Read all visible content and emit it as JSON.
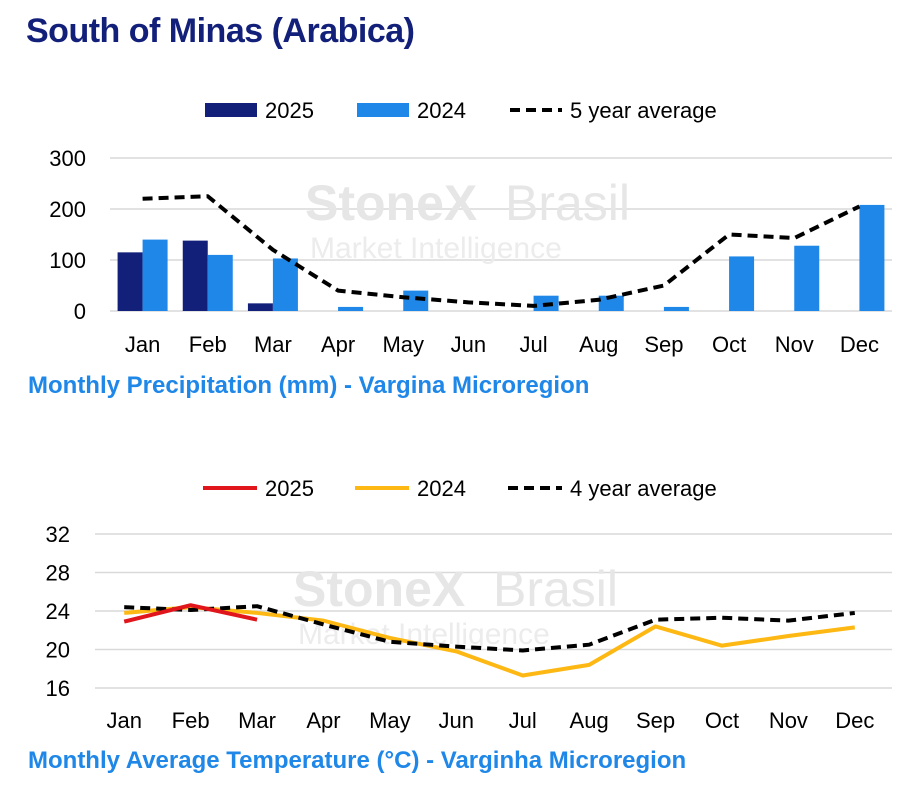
{
  "title": "South of Minas (Arabica)",
  "watermark": {
    "line1": "StoneX",
    "line2": "Brasil",
    "line3": "Market Intelligence"
  },
  "colors": {
    "title": "#13207a",
    "subtitle": "#1e87e8",
    "bar_2025": "#13207a",
    "bar_2024": "#1e87e8",
    "line_2025": "#e0161c",
    "line_2024": "#fdb813",
    "average": "#000000",
    "grid": "#d9d9d9"
  },
  "chart_data": [
    {
      "type": "bar",
      "title": "Monthly Precipitation (mm) - Vargina Microregion",
      "categories": [
        "Jan",
        "Feb",
        "Mar",
        "Apr",
        "May",
        "Jun",
        "Jul",
        "Aug",
        "Sep",
        "Oct",
        "Nov",
        "Dec"
      ],
      "ylim": [
        0,
        300
      ],
      "yticks": [
        0,
        100,
        200,
        300
      ],
      "legend_position": "top",
      "grid": true,
      "series": [
        {
          "name": "2025",
          "kind": "bar",
          "values": [
            115,
            138,
            15,
            null,
            null,
            null,
            null,
            null,
            null,
            null,
            null,
            null
          ]
        },
        {
          "name": "2024",
          "kind": "bar",
          "values": [
            140,
            110,
            103,
            8,
            40,
            0,
            30,
            30,
            8,
            107,
            128,
            208
          ]
        },
        {
          "name": "5 year average",
          "kind": "line",
          "dashed": true,
          "values": [
            220,
            225,
            120,
            40,
            27,
            17,
            10,
            22,
            50,
            150,
            143,
            205
          ]
        }
      ]
    },
    {
      "type": "line",
      "title": "Monthly Average Temperature (°C) - Varginha Microregion",
      "categories": [
        "Jan",
        "Feb",
        "Mar",
        "Apr",
        "May",
        "Jun",
        "Jul",
        "Aug",
        "Sep",
        "Oct",
        "Nov",
        "Dec"
      ],
      "ylim": [
        16,
        32
      ],
      "yticks": [
        16,
        20,
        24,
        28,
        32
      ],
      "legend_position": "top",
      "grid": true,
      "series": [
        {
          "name": "2025",
          "values": [
            22.9,
            24.6,
            23.1,
            null,
            null,
            null,
            null,
            null,
            null,
            null,
            null,
            null
          ]
        },
        {
          "name": "2024",
          "values": [
            23.8,
            24.4,
            23.8,
            23.0,
            21.2,
            19.8,
            17.3,
            18.4,
            22.4,
            20.4,
            21.4,
            22.3
          ]
        },
        {
          "name": "4 year average",
          "dashed": true,
          "values": [
            24.4,
            24.1,
            24.5,
            22.6,
            20.8,
            20.3,
            19.9,
            20.5,
            23.1,
            23.3,
            23.0,
            23.8
          ]
        }
      ]
    }
  ]
}
